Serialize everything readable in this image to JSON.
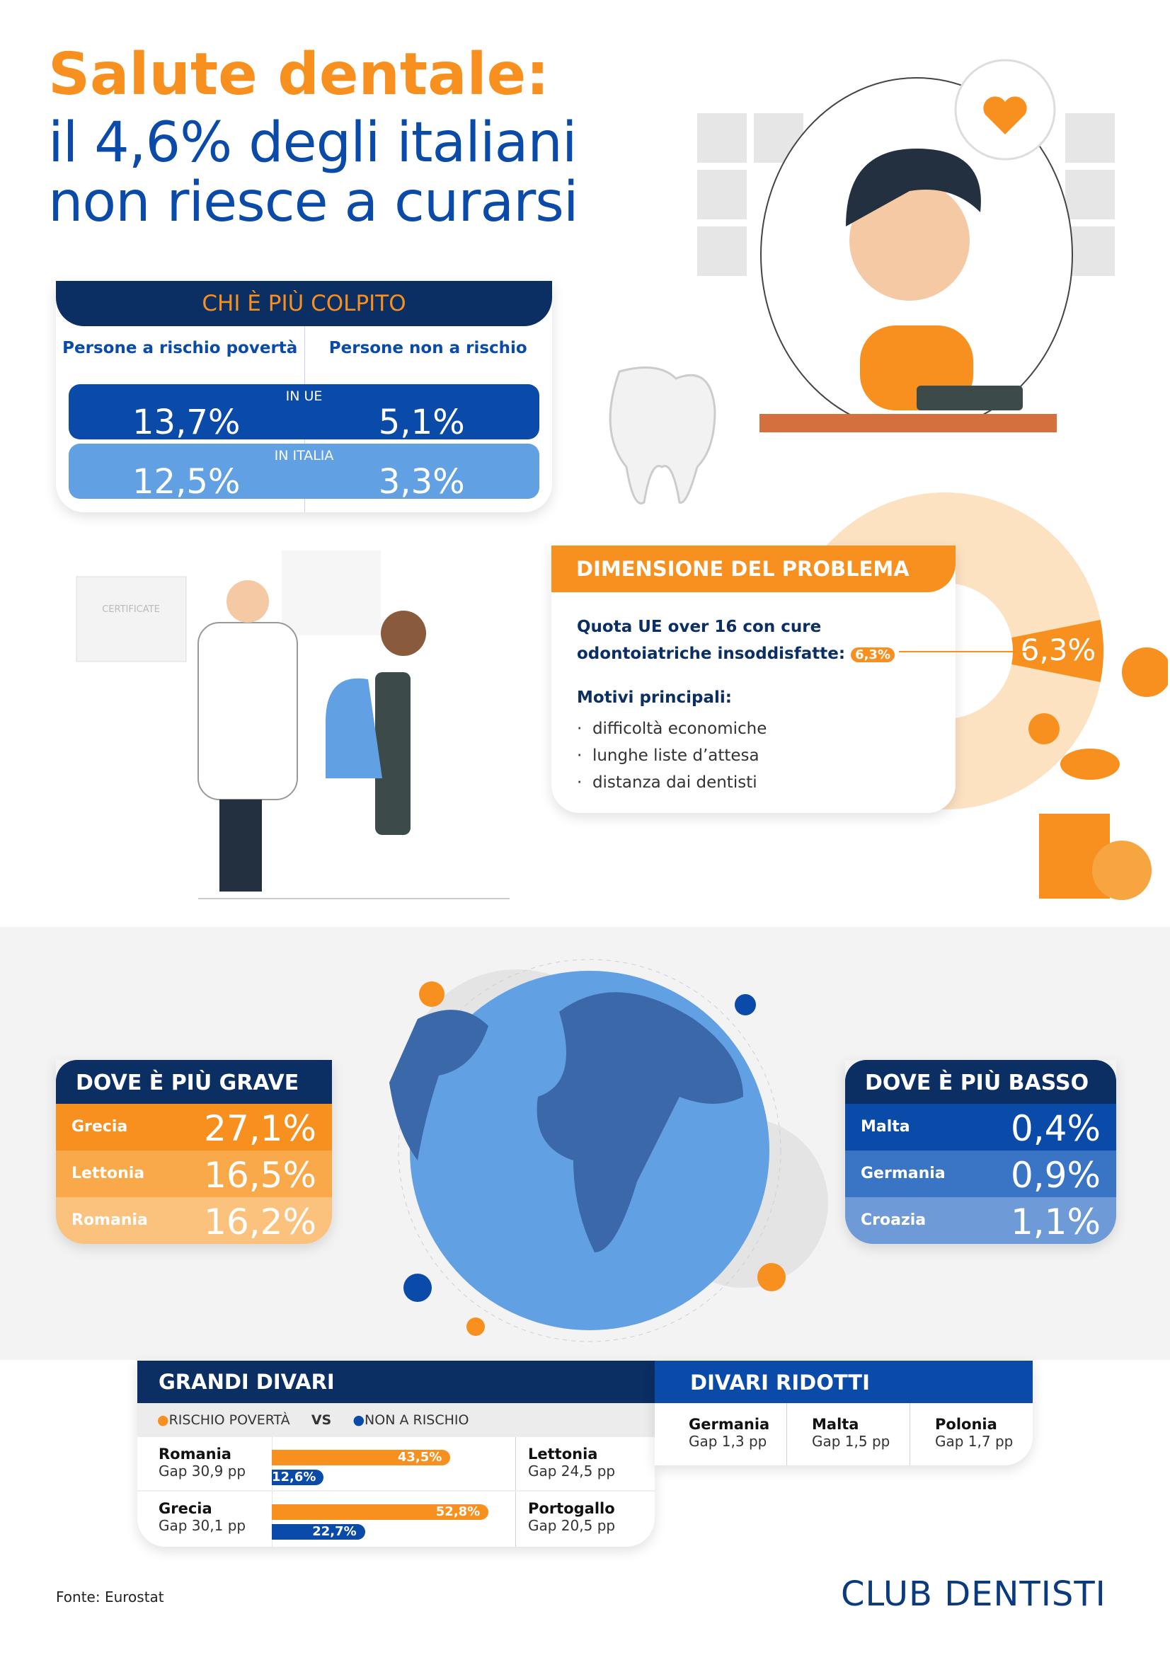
{
  "title": {
    "line1": "Salute dentale:",
    "line2": "il 4,6% degli italiani",
    "line3": "non riesce a curarsi"
  },
  "chi": {
    "header": "CHI È PIÙ COLPITO",
    "col1": "Persone a rischio povertà",
    "col2": "Persone non a rischio",
    "rows": [
      {
        "label": "IN UE",
        "v1": "13,7%",
        "v2": "5,1%",
        "color": "#0a4aa8"
      },
      {
        "label": "IN ITALIA",
        "v1": "12,5%",
        "v2": "3,3%",
        "color": "#62a0e4"
      }
    ]
  },
  "dimensione": {
    "header": "DIMENSIONE DEL PROBLEMA",
    "quota_line1": "Quota UE over 16 con cure",
    "quota_line2": "odontoiatriche insoddisfatte:",
    "badge": "6,3%",
    "donut_label": "6,3%",
    "donut_value_pct": 6.3,
    "motivi_title": "Motivi principali",
    "motivi": [
      "difficoltà economiche",
      "lunghe liste d’attesa",
      "distanza dai dentisti"
    ]
  },
  "illustration": {
    "certificate": "CERTIFICATE"
  },
  "grave": {
    "header": "DOVE È PIÙ GRAVE",
    "rows": [
      {
        "country": "Grecia",
        "value": "27,1%",
        "color": "#f7901e"
      },
      {
        "country": "Lettonia",
        "value": "16,5%",
        "color": "#f9a94a"
      },
      {
        "country": "Romania",
        "value": "16,2%",
        "color": "#fbc27d"
      }
    ]
  },
  "basso": {
    "header": "DOVE È PIÙ BASSO",
    "rows": [
      {
        "country": "Malta",
        "value": "0,4%",
        "color": "#0a4aa8"
      },
      {
        "country": "Germania",
        "value": "0,9%",
        "color": "#3a74c4"
      },
      {
        "country": "Croazia",
        "value": "1,1%",
        "color": "#6e9bd8"
      }
    ]
  },
  "grandi": {
    "header": "GRANDI DIVARI",
    "legend_a": "RISCHIO POVERTÀ",
    "vs": "VS",
    "legend_b": "NON A RISCHIO",
    "rows": [
      {
        "country": "Romania",
        "gap": "Gap 30,9 pp",
        "a": 43.5,
        "a_label": "43,5%",
        "b": 12.6,
        "b_label": "12,6%",
        "side_country": "Lettonia",
        "side_gap": "Gap 24,5 pp"
      },
      {
        "country": "Grecia",
        "gap": "Gap 30,1 pp",
        "a": 52.8,
        "a_label": "52,8%",
        "b": 22.7,
        "b_label": "22,7%",
        "side_country": "Portogallo",
        "side_gap": "Gap 20,5 pp"
      }
    ]
  },
  "ridotti": {
    "header": "DIVARI RIDOTTI",
    "items": [
      {
        "country": "Germania",
        "gap": "Gap 1,3 pp"
      },
      {
        "country": "Malta",
        "gap": "Gap 1,5 pp"
      },
      {
        "country": "Polonia",
        "gap": "Gap 1,7 pp"
      }
    ]
  },
  "footer": {
    "source": "Fonte: Eurostat",
    "logo": "CLUB DENTISTI"
  },
  "colors": {
    "orange": "#f7901e",
    "navy": "#0b2e63",
    "blue": "#0a4aa8",
    "light_blue": "#62a0e4"
  }
}
